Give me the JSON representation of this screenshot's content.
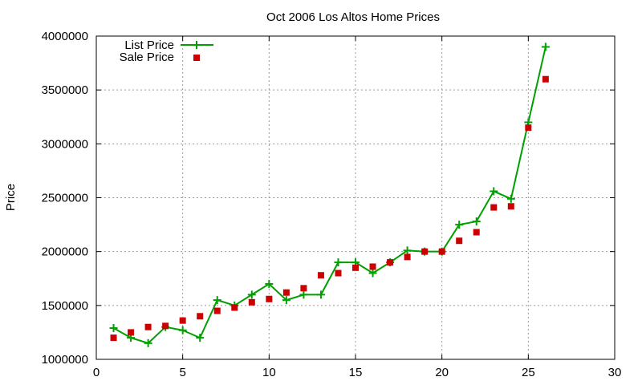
{
  "chart_data": {
    "type": "line",
    "title": "Oct 2006 Los Altos Home Prices",
    "xlabel": "",
    "ylabel": "Price",
    "xlim": [
      0,
      30
    ],
    "ylim": [
      1000000,
      4000000
    ],
    "xticks": [
      0,
      5,
      10,
      15,
      20,
      25,
      30
    ],
    "yticks": [
      1000000,
      1500000,
      2000000,
      2500000,
      3000000,
      3500000,
      4000000
    ],
    "grid": true,
    "legend_position": "top-left",
    "x": [
      1,
      2,
      3,
      4,
      5,
      6,
      7,
      8,
      9,
      10,
      11,
      12,
      13,
      14,
      15,
      16,
      17,
      18,
      19,
      20,
      21,
      22,
      23,
      24,
      25,
      26
    ],
    "series": [
      {
        "name": "List Price",
        "style": "line-plus",
        "color": "#00a000",
        "values": [
          1290000,
          1200000,
          1150000,
          1300000,
          1270000,
          1200000,
          1550000,
          1500000,
          1600000,
          1700000,
          1550000,
          1600000,
          1600000,
          1900000,
          1900000,
          1800000,
          1900000,
          2010000,
          2000000,
          2000000,
          2250000,
          2280000,
          2560000,
          2490000,
          3200000,
          3900000
        ]
      },
      {
        "name": "Sale Price",
        "style": "square-marker",
        "color": "#cc0000",
        "values": [
          1200000,
          1250000,
          1300000,
          1310000,
          1360000,
          1400000,
          1450000,
          1480000,
          1530000,
          1560000,
          1620000,
          1660000,
          1780000,
          1800000,
          1850000,
          1860000,
          1900000,
          1950000,
          2000000,
          2000000,
          2100000,
          2180000,
          2410000,
          2420000,
          3150000,
          3600000
        ]
      }
    ]
  }
}
